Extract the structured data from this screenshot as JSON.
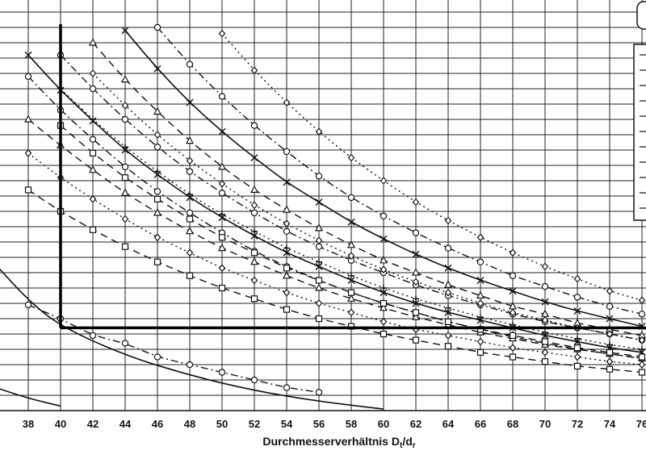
{
  "chart_data": {
    "type": "line",
    "title": "",
    "xlabel": "Durchmesserverhältnis Dt/dr",
    "xlabel_main": "Durchmesserverhältnis D",
    "xlabel_sub1": "t",
    "xlabel_mid": "/d",
    "xlabel_sub2": "r",
    "ylabel": "",
    "xlim": [
      37,
      77
    ],
    "ylim": [
      0,
      26
    ],
    "xticks": [
      38,
      40,
      42,
      44,
      46,
      48,
      50,
      52,
      54,
      56,
      58,
      60,
      62,
      64,
      66,
      68,
      70,
      72,
      74,
      76
    ],
    "grid": true,
    "legend": "top-right",
    "reference_line": {
      "x": 40,
      "y": 5.4
    },
    "series": [
      {
        "style": "solid",
        "marker": "none",
        "values": [
          [
            36,
            9.5
          ],
          [
            38,
            7.2
          ],
          [
            40,
            5.5
          ],
          [
            44,
            3.6
          ],
          [
            48,
            2.3
          ],
          [
            52,
            1.3
          ],
          [
            56,
            0.6
          ],
          [
            60,
            0.1
          ]
        ]
      },
      {
        "style": "solid",
        "marker": "none",
        "values": [
          [
            36,
            1.5
          ],
          [
            38,
            0.8
          ],
          [
            40,
            0.3
          ]
        ]
      },
      {
        "style": "dashdot",
        "marker": "circle",
        "values": [
          [
            38,
            6.9
          ],
          [
            40,
            6.0
          ],
          [
            42,
            4.9
          ],
          [
            44,
            4.4
          ],
          [
            46,
            3.5
          ],
          [
            48,
            3.0
          ],
          [
            50,
            2.5
          ],
          [
            52,
            2.0
          ],
          [
            54,
            1.5
          ],
          [
            56,
            1.2
          ]
        ]
      },
      {
        "style": "dashdot",
        "marker": "circle",
        "values": [
          [
            38,
            21.8
          ],
          [
            40,
            19.6
          ],
          [
            42,
            17.7
          ],
          [
            44,
            15.9
          ],
          [
            46,
            14.3
          ],
          [
            48,
            12.9
          ],
          [
            50,
            11.6
          ],
          [
            52,
            10.4
          ],
          [
            54,
            9.4
          ],
          [
            56,
            8.5
          ],
          [
            58,
            7.7
          ],
          [
            60,
            7.0
          ],
          [
            62,
            6.4
          ],
          [
            64,
            5.8
          ],
          [
            66,
            5.3
          ],
          [
            68,
            4.8
          ],
          [
            70,
            4.4
          ],
          [
            72,
            4.0
          ],
          [
            74,
            3.7
          ],
          [
            76,
            3.4
          ]
        ]
      },
      {
        "style": "dashed",
        "marker": "square",
        "values": [
          [
            38,
            14.4
          ],
          [
            40,
            13.0
          ],
          [
            42,
            11.8
          ],
          [
            44,
            10.7
          ],
          [
            46,
            9.7
          ],
          [
            48,
            8.8
          ],
          [
            50,
            8.0
          ],
          [
            52,
            7.3
          ],
          [
            54,
            6.6
          ],
          [
            56,
            6.0
          ],
          [
            58,
            5.5
          ],
          [
            60,
            5.0
          ],
          [
            62,
            4.6
          ],
          [
            64,
            4.2
          ],
          [
            66,
            3.8
          ],
          [
            68,
            3.5
          ],
          [
            70,
            3.2
          ],
          [
            72,
            2.9
          ],
          [
            74,
            2.7
          ],
          [
            76,
            2.5
          ]
        ]
      },
      {
        "style": "dotted",
        "marker": "diamond",
        "values": [
          [
            38,
            16.8
          ],
          [
            40,
            15.2
          ],
          [
            42,
            13.8
          ],
          [
            44,
            12.5
          ],
          [
            46,
            11.3
          ],
          [
            48,
            10.3
          ],
          [
            50,
            9.3
          ],
          [
            52,
            8.5
          ],
          [
            54,
            7.7
          ],
          [
            56,
            7.0
          ],
          [
            58,
            6.4
          ],
          [
            60,
            5.8
          ],
          [
            62,
            5.3
          ],
          [
            64,
            4.9
          ],
          [
            66,
            4.5
          ],
          [
            68,
            4.1
          ],
          [
            70,
            3.8
          ],
          [
            72,
            3.5
          ],
          [
            74,
            3.2
          ],
          [
            76,
            3.0
          ]
        ]
      },
      {
        "style": "dashed",
        "marker": "triangle",
        "values": [
          [
            38,
            19.0
          ],
          [
            40,
            17.3
          ],
          [
            42,
            15.7
          ],
          [
            44,
            14.2
          ],
          [
            46,
            12.9
          ],
          [
            48,
            11.7
          ],
          [
            50,
            10.6
          ],
          [
            52,
            9.7
          ],
          [
            54,
            8.8
          ],
          [
            56,
            8.0
          ],
          [
            58,
            7.3
          ],
          [
            60,
            6.7
          ],
          [
            62,
            6.1
          ],
          [
            64,
            5.6
          ],
          [
            66,
            5.1
          ],
          [
            68,
            4.7
          ],
          [
            70,
            4.3
          ],
          [
            72,
            4.0
          ],
          [
            74,
            3.7
          ],
          [
            76,
            3.4
          ]
        ]
      },
      {
        "style": "solid",
        "marker": "cross",
        "values": [
          [
            38,
            23.2
          ],
          [
            40,
            20.9
          ],
          [
            42,
            18.9
          ],
          [
            44,
            17.0
          ],
          [
            46,
            15.4
          ],
          [
            48,
            13.9
          ],
          [
            50,
            12.6
          ],
          [
            52,
            11.4
          ],
          [
            54,
            10.3
          ],
          [
            56,
            9.4
          ],
          [
            58,
            8.5
          ],
          [
            60,
            7.7
          ],
          [
            62,
            7.0
          ],
          [
            64,
            6.4
          ],
          [
            66,
            5.9
          ],
          [
            68,
            5.4
          ],
          [
            70,
            4.9
          ],
          [
            72,
            4.5
          ],
          [
            74,
            4.1
          ],
          [
            76,
            3.8
          ]
        ]
      },
      {
        "style": "dashdot",
        "marker": "circle",
        "values": [
          [
            40,
            23.2
          ],
          [
            42,
            21.0
          ],
          [
            44,
            19.0
          ],
          [
            46,
            17.2
          ],
          [
            48,
            15.6
          ],
          [
            50,
            14.2
          ],
          [
            52,
            12.9
          ],
          [
            54,
            11.7
          ],
          [
            56,
            10.7
          ],
          [
            58,
            9.8
          ],
          [
            60,
            9.0
          ],
          [
            62,
            8.2
          ],
          [
            64,
            7.5
          ],
          [
            66,
            6.9
          ],
          [
            68,
            6.3
          ],
          [
            70,
            5.8
          ],
          [
            72,
            5.4
          ],
          [
            74,
            5.0
          ],
          [
            76,
            4.6
          ]
        ]
      },
      {
        "style": "dashed",
        "marker": "square",
        "values": [
          [
            40,
            18.6
          ],
          [
            42,
            16.8
          ],
          [
            44,
            15.2
          ],
          [
            46,
            13.8
          ],
          [
            48,
            12.5
          ],
          [
            50,
            11.3
          ],
          [
            52,
            10.3
          ],
          [
            54,
            9.3
          ],
          [
            56,
            8.5
          ],
          [
            58,
            7.7
          ],
          [
            60,
            7.0
          ],
          [
            62,
            6.4
          ],
          [
            64,
            5.8
          ],
          [
            66,
            5.3
          ],
          [
            68,
            4.9
          ],
          [
            70,
            4.5
          ],
          [
            72,
            4.1
          ],
          [
            74,
            3.8
          ],
          [
            76,
            3.5
          ]
        ]
      },
      {
        "style": "dotted",
        "marker": "plus",
        "values": [
          [
            40,
            21.0
          ],
          [
            42,
            19.0
          ],
          [
            44,
            17.2
          ],
          [
            46,
            15.6
          ],
          [
            48,
            14.1
          ],
          [
            50,
            12.8
          ],
          [
            52,
            11.7
          ],
          [
            54,
            10.6
          ],
          [
            56,
            9.7
          ],
          [
            58,
            8.8
          ],
          [
            60,
            8.0
          ],
          [
            62,
            7.3
          ],
          [
            64,
            6.7
          ],
          [
            66,
            6.1
          ],
          [
            68,
            5.6
          ],
          [
            70,
            5.1
          ],
          [
            72,
            4.7
          ],
          [
            74,
            4.3
          ],
          [
            76,
            4.0
          ]
        ]
      },
      {
        "style": "dashed",
        "marker": "triangle",
        "values": [
          [
            42,
            24.0
          ],
          [
            44,
            21.6
          ],
          [
            46,
            19.5
          ],
          [
            48,
            17.6
          ],
          [
            50,
            15.9
          ],
          [
            52,
            14.4
          ],
          [
            54,
            13.1
          ],
          [
            56,
            11.9
          ],
          [
            58,
            10.8
          ],
          [
            60,
            9.8
          ],
          [
            62,
            9.0
          ],
          [
            64,
            8.2
          ],
          [
            66,
            7.5
          ],
          [
            68,
            6.8
          ],
          [
            70,
            6.3
          ],
          [
            72,
            5.7
          ],
          [
            74,
            5.3
          ],
          [
            76,
            4.9
          ]
        ]
      },
      {
        "style": "dotted",
        "marker": "diamond",
        "values": [
          [
            42,
            22.0
          ],
          [
            44,
            19.9
          ],
          [
            46,
            18.0
          ],
          [
            48,
            16.3
          ],
          [
            50,
            14.8
          ],
          [
            52,
            13.4
          ],
          [
            54,
            12.2
          ],
          [
            56,
            11.1
          ],
          [
            58,
            10.1
          ],
          [
            60,
            9.2
          ],
          [
            62,
            8.4
          ],
          [
            64,
            7.7
          ],
          [
            66,
            7.0
          ],
          [
            68,
            6.4
          ],
          [
            70,
            5.9
          ],
          [
            72,
            5.4
          ],
          [
            74,
            5.0
          ],
          [
            76,
            4.6
          ]
        ]
      },
      {
        "style": "solid",
        "marker": "cross",
        "values": [
          [
            44,
            24.8
          ],
          [
            46,
            22.3
          ],
          [
            48,
            20.1
          ],
          [
            50,
            18.2
          ],
          [
            52,
            16.5
          ],
          [
            54,
            14.9
          ],
          [
            56,
            13.6
          ],
          [
            58,
            12.3
          ],
          [
            60,
            11.2
          ],
          [
            62,
            10.2
          ],
          [
            64,
            9.3
          ],
          [
            66,
            8.5
          ],
          [
            68,
            7.8
          ],
          [
            70,
            7.1
          ],
          [
            72,
            6.5
          ],
          [
            74,
            6.0
          ],
          [
            76,
            5.5
          ]
        ]
      },
      {
        "style": "dashdot",
        "marker": "circle",
        "values": [
          [
            46,
            25.0
          ],
          [
            48,
            22.6
          ],
          [
            50,
            20.5
          ],
          [
            52,
            18.6
          ],
          [
            54,
            16.9
          ],
          [
            56,
            15.3
          ],
          [
            58,
            13.9
          ],
          [
            60,
            12.7
          ],
          [
            62,
            11.6
          ],
          [
            64,
            10.6
          ],
          [
            66,
            9.7
          ],
          [
            68,
            8.8
          ],
          [
            70,
            8.1
          ],
          [
            72,
            7.4
          ],
          [
            74,
            6.8
          ],
          [
            76,
            6.3
          ]
        ]
      },
      {
        "style": "dotted",
        "marker": "diamond",
        "values": [
          [
            50,
            24.6
          ],
          [
            52,
            22.2
          ],
          [
            54,
            20.1
          ],
          [
            56,
            18.2
          ],
          [
            58,
            16.5
          ],
          [
            60,
            15.0
          ],
          [
            62,
            13.6
          ],
          [
            64,
            12.4
          ],
          [
            66,
            11.3
          ],
          [
            68,
            10.3
          ],
          [
            70,
            9.4
          ],
          [
            72,
            8.6
          ],
          [
            74,
            7.8
          ],
          [
            76,
            7.2
          ]
        ]
      }
    ]
  },
  "legend_box": {
    "rows": [
      "",
      "",
      "",
      "",
      "",
      "",
      "",
      "",
      "",
      "",
      ""
    ]
  }
}
